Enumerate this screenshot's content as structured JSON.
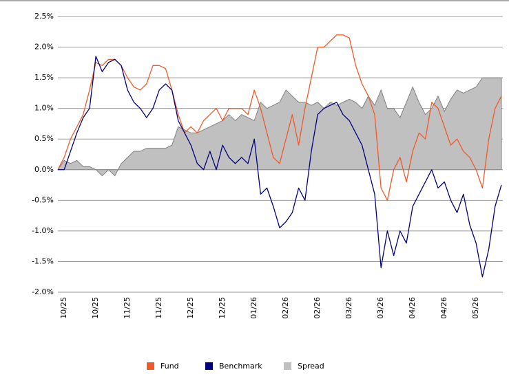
{
  "chart_data": {
    "type": "line",
    "categories": [
      null,
      "10/25",
      null,
      null,
      null,
      null,
      "10/25",
      null,
      null,
      null,
      null,
      "11/25",
      null,
      null,
      null,
      null,
      "11/25",
      null,
      null,
      null,
      null,
      "12/25",
      null,
      null,
      null,
      null,
      "12/25",
      null,
      null,
      null,
      null,
      "01/26",
      null,
      null,
      null,
      null,
      "02/26",
      null,
      null,
      null,
      null,
      "02/26",
      null,
      null,
      null,
      null,
      "03/26",
      null,
      null,
      null,
      null,
      "03/26",
      null,
      null,
      null,
      null,
      "04/26",
      null,
      null,
      null,
      null,
      "04/26",
      null,
      null,
      null,
      null,
      "05/26",
      null,
      null,
      null,
      null
    ],
    "series": [
      {
        "name": "Spread",
        "color": "#c0c0c0",
        "type": "area",
        "values": [
          0.0,
          0.15,
          0.1,
          0.15,
          0.05,
          0.05,
          0.0,
          -0.1,
          0.0,
          -0.1,
          0.1,
          0.2,
          0.3,
          0.3,
          0.35,
          0.35,
          0.35,
          0.35,
          0.4,
          0.7,
          0.65,
          0.6,
          0.6,
          0.65,
          0.7,
          0.75,
          0.8,
          0.9,
          0.8,
          0.9,
          0.85,
          0.8,
          1.1,
          1.0,
          1.05,
          1.1,
          1.3,
          1.2,
          1.1,
          1.1,
          1.05,
          1.1,
          1.0,
          1.1,
          1.05,
          1.1,
          1.15,
          1.1,
          1.0,
          1.2,
          1.05,
          1.3,
          1.0,
          1.0,
          0.85,
          1.1,
          1.35,
          1.1,
          0.9,
          1.0,
          1.2,
          0.95,
          1.15,
          1.3,
          1.25,
          1.3,
          1.35,
          1.5,
          1.5,
          1.5,
          1.5
        ]
      },
      {
        "name": "Fund",
        "color": "#f05a28",
        "type": "line",
        "values": [
          0,
          0.2,
          0.5,
          0.7,
          0.9,
          1.3,
          1.75,
          1.7,
          1.8,
          1.8,
          1.7,
          1.5,
          1.35,
          1.3,
          1.4,
          1.7,
          1.7,
          1.65,
          1.3,
          0.9,
          0.6,
          0.7,
          0.6,
          0.8,
          0.9,
          1.0,
          0.8,
          1.0,
          1.0,
          1.0,
          0.9,
          1.3,
          1.0,
          0.6,
          0.2,
          0.1,
          0.5,
          0.9,
          0.4,
          1.0,
          1.5,
          2.0,
          2.0,
          2.1,
          2.2,
          2.2,
          2.15,
          1.7,
          1.4,
          1.2,
          0.9,
          -0.3,
          -0.5,
          0.0,
          0.2,
          -0.2,
          0.3,
          0.6,
          0.5,
          1.1,
          1.0,
          0.7,
          0.4,
          0.5,
          0.3,
          0.2,
          0.0,
          -0.3,
          0.5,
          1.0,
          1.2
        ]
      },
      {
        "name": "Benchmark",
        "color": "#000080",
        "type": "line",
        "values": [
          0,
          0,
          0.3,
          0.6,
          0.85,
          1.0,
          1.85,
          1.6,
          1.75,
          1.8,
          1.7,
          1.3,
          1.1,
          1.0,
          0.85,
          1.0,
          1.3,
          1.4,
          1.3,
          0.8,
          0.6,
          0.4,
          0.1,
          0.0,
          0.3,
          0.0,
          0.4,
          0.2,
          0.1,
          0.2,
          0.1,
          0.5,
          -0.4,
          -0.3,
          -0.6,
          -0.95,
          -0.85,
          -0.7,
          -0.3,
          -0.5,
          0.3,
          0.9,
          1.0,
          1.05,
          1.1,
          0.9,
          0.8,
          0.6,
          0.4,
          0.0,
          -0.4,
          -1.6,
          -1.0,
          -1.4,
          -1.0,
          -1.2,
          -0.6,
          -0.4,
          -0.2,
          0.0,
          -0.3,
          -0.2,
          -0.5,
          -0.7,
          -0.4,
          -0.9,
          -1.2,
          -1.75,
          -1.3,
          -0.6,
          -0.25
        ]
      }
    ],
    "ylim": [
      -2.0,
      2.5
    ],
    "yticks": [
      {
        "value": -2.0,
        "label": "-2.0%"
      },
      {
        "value": -1.5,
        "label": "-1.5%"
      },
      {
        "value": -1.0,
        "label": "-1.0%"
      },
      {
        "value": -0.5,
        "label": "-0.5%"
      },
      {
        "value": 0.0,
        "label": "0.0%"
      },
      {
        "value": 0.5,
        "label": "0.5%"
      },
      {
        "value": 1.0,
        "label": "1.0%"
      },
      {
        "value": 1.5,
        "label": "1.5%"
      },
      {
        "value": 2.0,
        "label": "2.0%"
      },
      {
        "value": 2.5,
        "label": "2.5%"
      }
    ],
    "grid": true,
    "legend": "bottom"
  }
}
